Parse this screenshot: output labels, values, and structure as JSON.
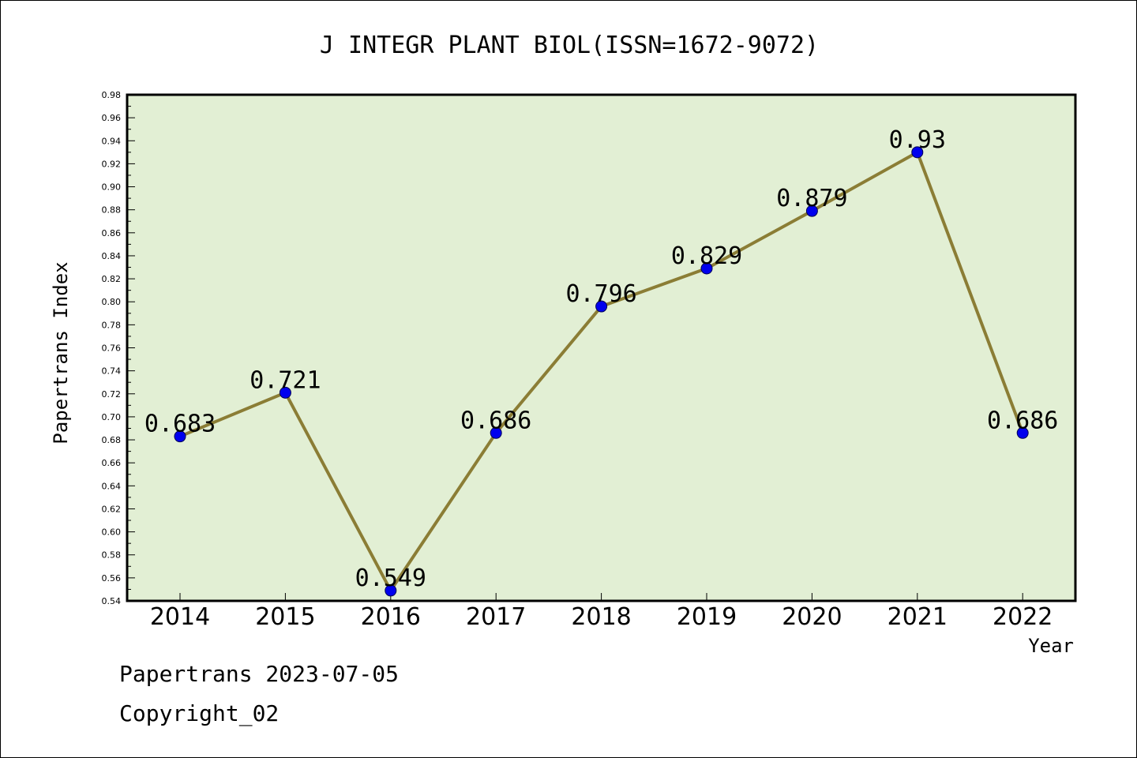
{
  "footer": {
    "line1": "Papertrans 2023-07-05",
    "line2": "Copyright_02"
  },
  "colors": {
    "plot_background": "#e2efd4",
    "line": "#8b7d35",
    "marker": "#0000ee"
  },
  "chart_data": {
    "type": "line",
    "title": "J INTEGR PLANT BIOL(ISSN=1672-9072)",
    "xlabel": "Year",
    "ylabel": "Papertrans Index",
    "categories": [
      "2014",
      "2015",
      "2016",
      "2017",
      "2018",
      "2019",
      "2020",
      "2021",
      "2022"
    ],
    "series": [
      {
        "values": [
          0.683,
          0.721,
          0.549,
          0.686,
          0.796,
          0.829,
          0.879,
          0.93,
          0.686
        ],
        "data_labels": [
          "0.683",
          "0.721",
          "0.549",
          "0.686",
          "0.796",
          "0.829",
          "0.879",
          "0.93",
          "0.686"
        ]
      }
    ],
    "ylim": [
      0.54,
      0.98
    ],
    "ytick_step": 0.02,
    "ytick_labels": [
      "0.54",
      "0.56",
      "0.58",
      "0.60",
      "0.62",
      "0.64",
      "0.66",
      "0.68",
      "0.70",
      "0.72",
      "0.74",
      "0.76",
      "0.78",
      "0.80",
      "0.82",
      "0.84",
      "0.86",
      "0.88",
      "0.90",
      "0.92",
      "0.94",
      "0.96",
      "0.98"
    ],
    "grid": false,
    "legend": "none"
  }
}
